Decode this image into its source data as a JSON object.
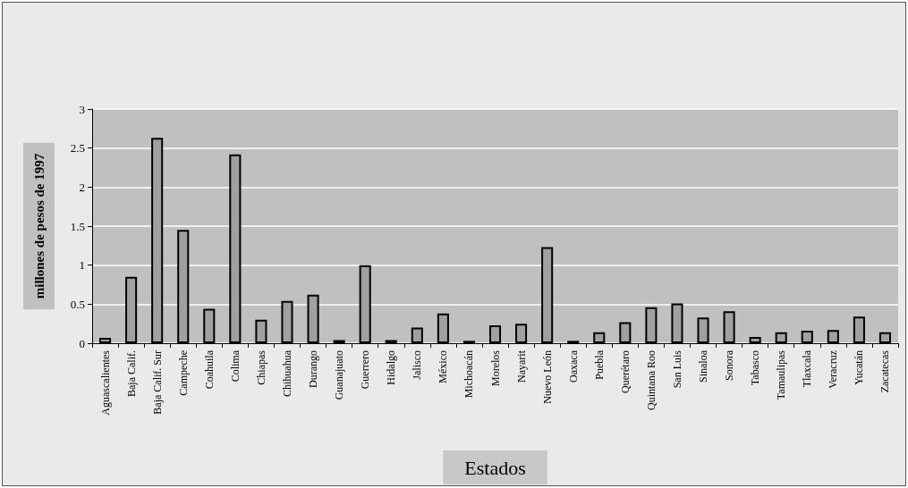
{
  "chart_data": {
    "type": "bar",
    "xlabel": "Estados",
    "ylabel": "millones de pesos de 1997",
    "categories": [
      "Aguascalientes",
      "Baja Calif.",
      "Baja Calif. Sur",
      "Campeche",
      "Coahuila",
      "Colima",
      "Chiapas",
      "Chihuahua",
      "Durango",
      "Guanajuato",
      "Guerrero",
      "Hidalgo",
      "Jalisco",
      "México",
      "Michoacán",
      "Morelos",
      "Nayarit",
      "Nuevo León",
      "Oaxaca",
      "Puebla",
      "Querétaro",
      "Quintana Roo",
      "San Luis",
      "Sinaloa",
      "Sonora",
      "Tabasco",
      "Tamaulipas",
      "Tlaxcala",
      "Veracruz",
      "Yucatán",
      "Zacatecas"
    ],
    "values": [
      0.07,
      0.85,
      2.63,
      1.45,
      0.44,
      2.42,
      0.3,
      0.54,
      0.62,
      0.04,
      1.0,
      0.04,
      0.2,
      0.38,
      0.03,
      0.23,
      0.25,
      1.23,
      0.03,
      0.14,
      0.27,
      0.46,
      0.51,
      0.33,
      0.41,
      0.08,
      0.14,
      0.16,
      0.17,
      0.34,
      0.14
    ],
    "color": "#a0a0a0",
    "ylim": [
      0,
      3
    ],
    "yticks": [
      0,
      0.5,
      1,
      1.5,
      2,
      2.5,
      3
    ],
    "grid": "y"
  }
}
